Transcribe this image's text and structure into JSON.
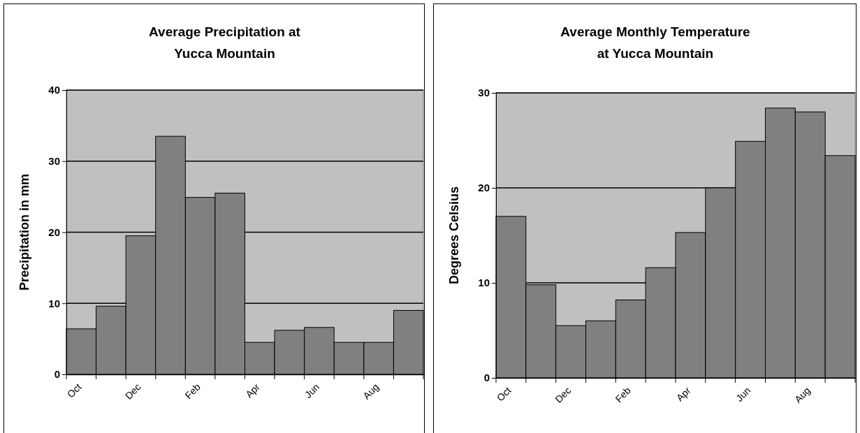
{
  "chart_data": [
    {
      "type": "bar",
      "title": "Average Precipitation at\nYucca Mountain",
      "ylabel": "Precipitation in mm",
      "categories": [
        "Oct",
        null,
        "Dec",
        null,
        "Feb",
        null,
        "Apr",
        null,
        "Jun",
        null,
        "Aug",
        null
      ],
      "values": [
        6.4,
        9.6,
        19.5,
        33.5,
        24.9,
        25.5,
        4.5,
        6.2,
        6.6,
        4.5,
        4.5,
        9.0
      ],
      "color": "#808080",
      "ylim": [
        0,
        40
      ],
      "yticks": [
        0,
        10,
        20,
        30,
        40
      ],
      "grid": "y"
    },
    {
      "type": "bar",
      "title": "Average Monthly Temperature\nat Yucca Mountain",
      "ylabel": "Degrees Celsius",
      "categories": [
        "Oct",
        null,
        "Dec",
        null,
        "Feb",
        null,
        "Apr",
        null,
        "Jun",
        null,
        "Aug",
        null
      ],
      "values": [
        17.0,
        9.8,
        5.5,
        6.0,
        8.2,
        11.6,
        15.3,
        20.0,
        24.9,
        28.4,
        28.0,
        23.4
      ],
      "color": "#808080",
      "ylim": [
        0,
        30
      ],
      "yticks": [
        0,
        10,
        20,
        30
      ],
      "grid": "y"
    }
  ]
}
